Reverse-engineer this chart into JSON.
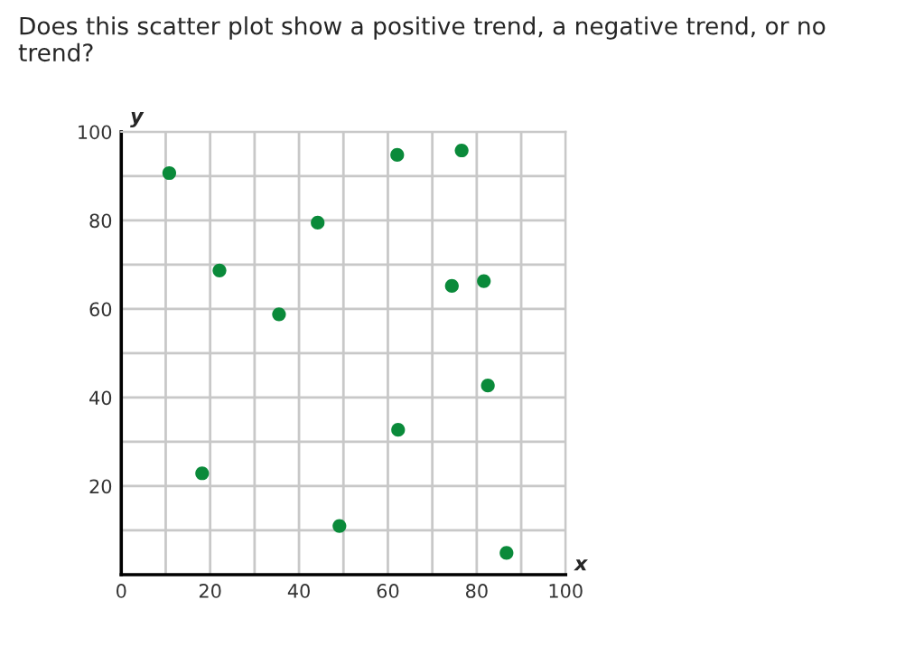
{
  "chart_data": {
    "type": "scatter",
    "title": "Does this scatter plot show a positive trend, a negative trend, or no trend?",
    "xlabel": "x",
    "ylabel": "y",
    "x": [
      10.8,
      22.1,
      18.2,
      35.5,
      44.2,
      49.1,
      62.1,
      62.3,
      76.6,
      74.4,
      81.6,
      82.5,
      86.7
    ],
    "series": [
      {
        "color": "#0a8a3a",
        "values": [
          90.7,
          68.7,
          22.9,
          58.8,
          79.5,
          11.0,
          94.8,
          32.7,
          95.8,
          65.2,
          66.3,
          42.7,
          4.9
        ]
      }
    ],
    "xlim": [
      0,
      100
    ],
    "ylim": [
      0,
      100
    ],
    "xticks": [
      0,
      {
        "value": 10,
        "label": null
      },
      20,
      {
        "value": 30,
        "label": null
      },
      40,
      {
        "value": 50,
        "label": null
      },
      60,
      {
        "value": 70,
        "label": null
      },
      80,
      {
        "value": 90,
        "label": null
      },
      100
    ],
    "yticks": [
      {
        "value": 10,
        "label": null
      },
      20,
      {
        "value": 30,
        "label": null
      },
      40,
      {
        "value": 50,
        "label": null
      },
      60,
      {
        "value": 70,
        "label": null
      },
      80,
      {
        "value": 90,
        "label": null
      },
      100
    ],
    "grid": true,
    "marker": "circle",
    "legend": false
  }
}
